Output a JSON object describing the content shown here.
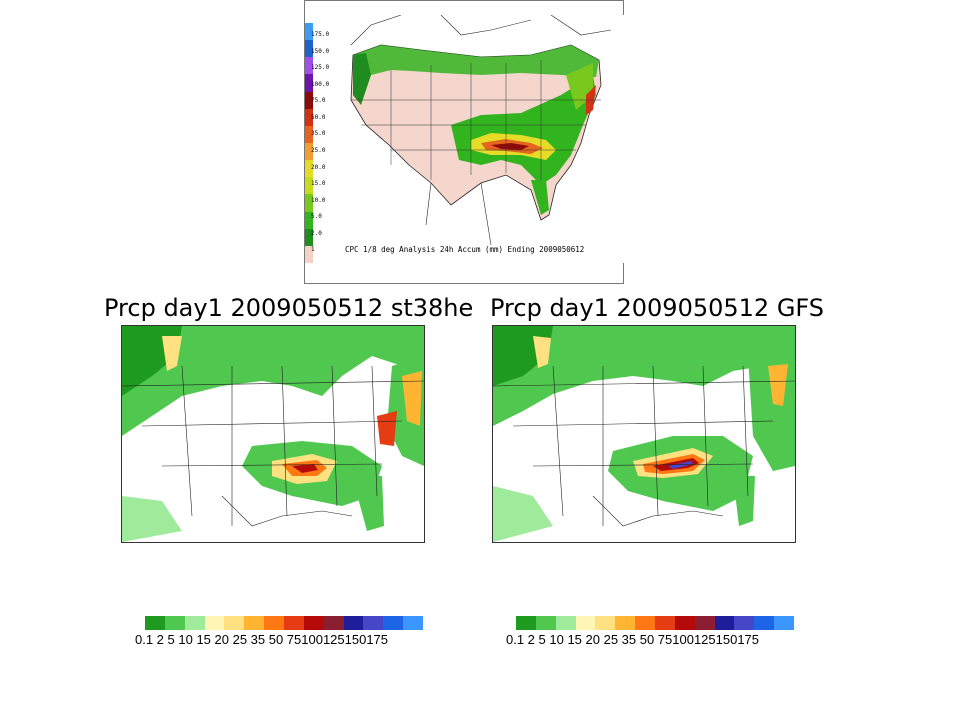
{
  "top_panel": {
    "caption": "CPC 1/8 deg Analysis 24h Accum (mm) Ending 2009050612",
    "legend_values": [
      "175.0",
      "150.0",
      "125.0",
      "100.0",
      "75.0",
      "50.0",
      "35.0",
      "25.0",
      "20.0",
      "15.0",
      "10.0",
      "5.0",
      "2.0",
      "1"
    ],
    "legend_colors": [
      "#3c9cf0",
      "#1e64c8",
      "#a050e6",
      "#6e14aa",
      "#8c0a0a",
      "#d23214",
      "#e6641e",
      "#f0a032",
      "#e6dc28",
      "#c8dc1e",
      "#78c81e",
      "#32b41e",
      "#1e8c1e",
      "#f5d2c8"
    ]
  },
  "left_panel": {
    "title": "Prcp day1 2009050512 st38he"
  },
  "right_panel": {
    "title": "Prcp day1 2009050512 GFS"
  },
  "colorbar": {
    "colors": [
      "#1e9b1e",
      "#50c850",
      "#a0eb9b",
      "#fff5b4",
      "#ffe182",
      "#ffb432",
      "#ff7814",
      "#e63c14",
      "#b40a0a",
      "#8c1e32",
      "#1e1e9b",
      "#4646c8",
      "#1e64e6",
      "#3c96ff"
    ],
    "labels": [
      "0.1",
      "2",
      "5",
      "10",
      "15",
      "20",
      "25",
      "35",
      "50",
      "75",
      "100",
      "125",
      "150",
      "175"
    ],
    "label_text": "0.1 2   5  10 15 20 25 35 50 75100125150175"
  }
}
